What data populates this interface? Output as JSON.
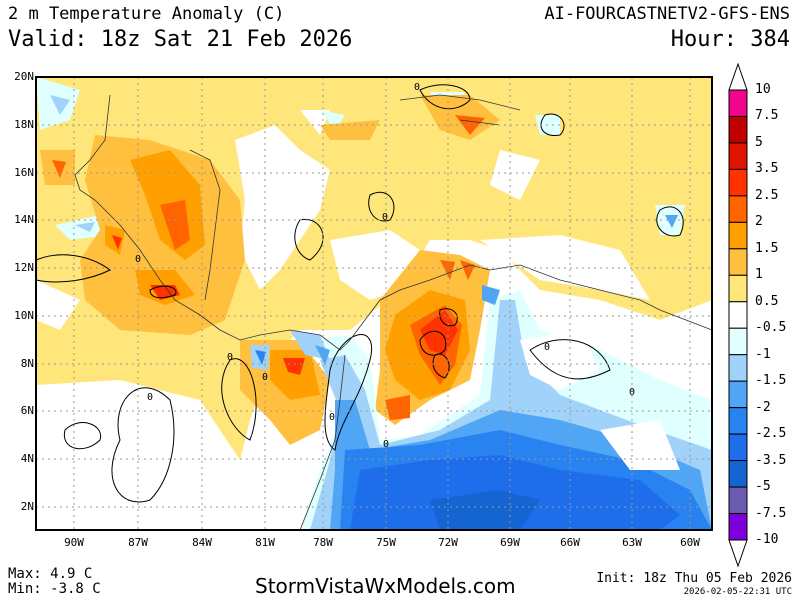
{
  "header": {
    "title": "2 m Temperature Anomaly (C)",
    "valid": "Valid: 18z Sat 21 Feb 2026",
    "model": "AI-FOURCASTNETV2-GFS-ENS",
    "hour": "Hour: 384"
  },
  "map": {
    "lat_labels": [
      "20N",
      "18N",
      "16N",
      "14N",
      "12N",
      "10N",
      "8N",
      "6N",
      "4N",
      "2N"
    ],
    "lon_labels": [
      "90W",
      "87W",
      "84W",
      "81W",
      "78W",
      "75W",
      "72W",
      "69W",
      "66W",
      "63W",
      "60W"
    ],
    "contour_label": "0"
  },
  "colorbar": {
    "labels": [
      "10",
      "7.5",
      "5",
      "3.5",
      "2.5",
      "2",
      "1.5",
      "1",
      "0.5",
      "-0.5",
      "-1",
      "-1.5",
      "-2",
      "-2.5",
      "-3.5",
      "-5",
      "-7.5",
      "-10"
    ],
    "colors": [
      "#f0068c",
      "#c00000",
      "#e01400",
      "#ff3200",
      "#ff6400",
      "#ffa000",
      "#ffc040",
      "#ffe67a",
      "#ffffff",
      "#e0ffff",
      "#a0d2fa",
      "#50a5f5",
      "#2882f0",
      "#1e6eeb",
      "#1464d2",
      "#6a5ab0",
      "#7d00dc"
    ]
  },
  "footer": {
    "max": "Max: 4.9 C",
    "min": "Min: -3.8 C",
    "site": "StormVistaWxModels.com",
    "init": "Init: 18z Thu 05 Feb 2026",
    "stamp": "2026-02-05-22:31 UTC"
  }
}
